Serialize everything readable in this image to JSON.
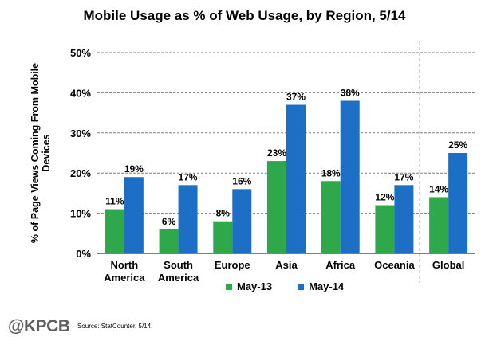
{
  "chart_data": {
    "type": "bar",
    "title": "Mobile Usage as % of Web Usage, by Region, 5/14",
    "ylabel": "% of Page Views Coming From Mobile Devices",
    "ylabel_lines": [
      "% of Page Views Coming From Mobile",
      "Devices"
    ],
    "xlabel": "",
    "ylim": [
      0,
      50
    ],
    "y_ticks": [
      "0%",
      "10%",
      "20%",
      "30%",
      "40%",
      "50%"
    ],
    "grid": true,
    "legend": "bottom",
    "categories": [
      "North America",
      "South America",
      "Europe",
      "Asia",
      "Africa",
      "Oceania",
      "Global"
    ],
    "category_lines": [
      [
        "North",
        "America"
      ],
      [
        "South",
        "America"
      ],
      [
        "Europe"
      ],
      [
        "Asia"
      ],
      [
        "Africa"
      ],
      [
        "Oceania"
      ],
      [
        "Global"
      ]
    ],
    "series": [
      {
        "name": "May-13",
        "values": [
          11,
          6,
          8,
          23,
          18,
          12,
          14
        ],
        "labels": [
          "11%",
          "6%",
          "8%",
          "23%",
          "18%",
          "12%",
          "14%"
        ],
        "color": "#2ea84a"
      },
      {
        "name": "May-14",
        "values": [
          19,
          17,
          16,
          37,
          38,
          17,
          25
        ],
        "labels": [
          "19%",
          "17%",
          "16%",
          "37%",
          "38%",
          "17%",
          "25%"
        ],
        "color": "#1c6fc4"
      }
    ],
    "separator_before": "Global"
  },
  "footer": {
    "brand": "@KPCB",
    "source": "Source: StatCounter, 5/14."
  }
}
